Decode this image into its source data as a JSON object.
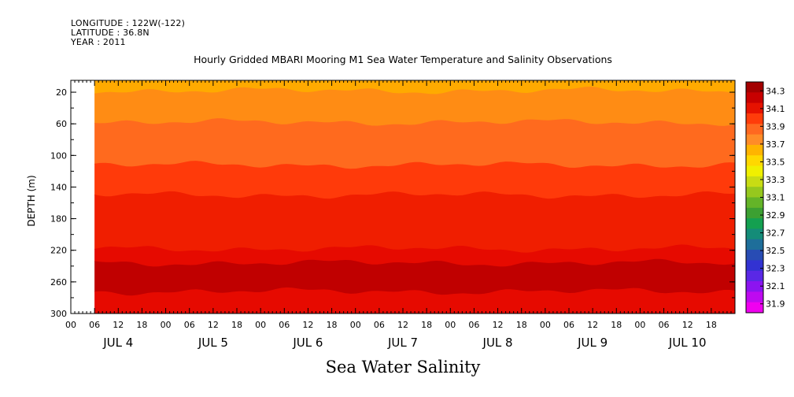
{
  "header": {
    "longitude": "LONGITUDE : 122W(-122)",
    "latitude": "LATITUDE : 36.8N",
    "year": "YEAR : 2011"
  },
  "chart_data": {
    "type": "heatmap",
    "title": "Hourly Gridded MBARI Mooring M1 Sea Water Temperature and Salinity Observations",
    "xlabel": "Sea Water Salinity",
    "ylabel": "DEPTH (m)",
    "x_range_hours": [
      0,
      168
    ],
    "data_start_hour": 6,
    "x_hour_ticks": [
      "00",
      "06",
      "12",
      "18",
      "00",
      "06",
      "12",
      "18",
      "00",
      "06",
      "12",
      "18",
      "00",
      "06",
      "12",
      "18",
      "00",
      "06",
      "12",
      "18",
      "00",
      "06",
      "12",
      "18",
      "00",
      "06",
      "12",
      "18"
    ],
    "day_labels": [
      "JUL 4",
      "JUL 5",
      "JUL 6",
      "JUL 7",
      "JUL 8",
      "JUL 9",
      "JUL 10"
    ],
    "y_range": [
      300,
      5
    ],
    "y_ticks": [
      20,
      60,
      100,
      140,
      180,
      220,
      260,
      300
    ],
    "colorbar": {
      "levels": [
        "34.3",
        "34.1",
        "33.9",
        "33.7",
        "33.5",
        "33.3",
        "33.1",
        "32.9",
        "32.7",
        "32.5",
        "32.3",
        "32.1",
        "31.9"
      ],
      "colors": [
        "#a30000",
        "#c80000",
        "#e61200",
        "#ff3c0a",
        "#ff6820",
        "#ff8c28",
        "#ffb400",
        "#ffd800",
        "#f0f000",
        "#c8dc14",
        "#96c81e",
        "#64b428",
        "#3ca032",
        "#14a050",
        "#148c78",
        "#1e6e9a",
        "#284cb4",
        "#3232d2",
        "#5a28e6",
        "#8c14f0",
        "#be0af0",
        "#f000f0"
      ]
    },
    "bands": [
      {
        "value": 33.75,
        "color": "#ffaa00",
        "from_depth": 5,
        "to_depth": 18
      },
      {
        "value": 33.85,
        "color": "#ff8c14",
        "from_depth": 18,
        "to_depth": 58
      },
      {
        "value": 33.95,
        "color": "#ff6a1e",
        "from_depth": 58,
        "to_depth": 112
      },
      {
        "value": 34.05,
        "color": "#ff3a0a",
        "from_depth": 112,
        "to_depth": 150
      },
      {
        "value": 34.15,
        "color": "#f01e00",
        "from_depth": 150,
        "to_depth": 218
      },
      {
        "value": 34.25,
        "color": "#e60a00",
        "from_depth": 218,
        "to_depth": 236
      },
      {
        "value": 34.35,
        "color": "#c00000",
        "from_depth": 236,
        "to_depth": 272
      },
      {
        "value": 34.25,
        "color": "#e60a00",
        "from_depth": 272,
        "to_depth": 300
      }
    ]
  }
}
